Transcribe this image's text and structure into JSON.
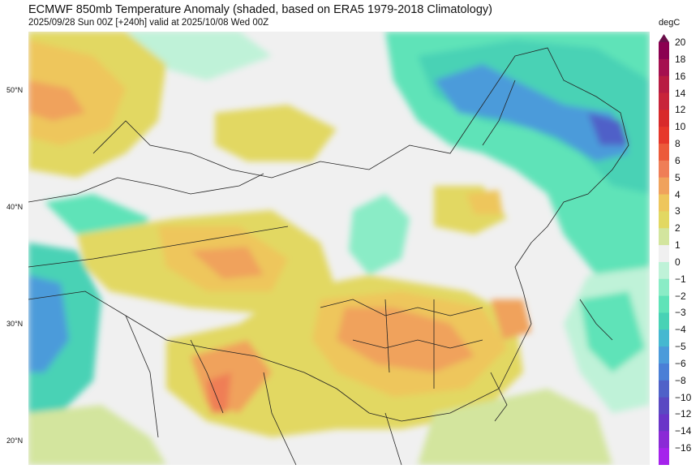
{
  "header": {
    "title": "ECMWF 850mb Temperature Anomaly (shaded, based on ERA5 1979-2018 Climatology)",
    "subtitle": "2025/09/28 Sun 00Z [+240h] valid at 2025/10/08 Wed 00Z"
  },
  "map": {
    "latitude_labels": [
      "50°N",
      "40°N",
      "30°N",
      "20°N"
    ]
  },
  "colorbar": {
    "unit": "degC",
    "levels": [
      "20",
      "18",
      "16",
      "14",
      "12",
      "10",
      "8",
      "6",
      "5",
      "4",
      "3",
      "2",
      "1",
      "0",
      "−1",
      "−2",
      "−3",
      "−4",
      "−5",
      "−6",
      "−8",
      "−10",
      "−12",
      "−14",
      "−16"
    ],
    "colors": [
      "#8b0050",
      "#a5104f",
      "#b81c42",
      "#c8243a",
      "#d82a2a",
      "#e6372a",
      "#ec5a3a",
      "#ef7e57",
      "#f0a25c",
      "#eec65c",
      "#e2d862",
      "#d3e59e",
      "#f0f0f0",
      "#bff2d8",
      "#8aecc6",
      "#5fe3b8",
      "#48d2b5",
      "#45b8d0",
      "#4b9bda",
      "#4a7fd6",
      "#4f61c8",
      "#5a49c2",
      "#6a35c8",
      "#8a2ad6",
      "#a522ec"
    ],
    "top_arrow_color": "#6a0f4a"
  }
}
